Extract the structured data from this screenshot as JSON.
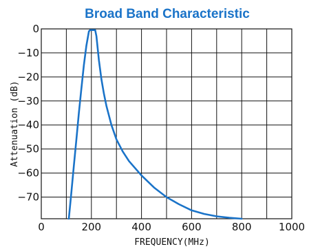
{
  "chart_data": {
    "type": "line",
    "title": "Broad Band Characteristic",
    "xlabel": "FREQUENCY(MHz)",
    "ylabel": "Attenuation (dB)",
    "xlim": [
      0,
      1000
    ],
    "ylim": [
      -79,
      0
    ],
    "x_ticks": [
      "0",
      "200",
      "400",
      "600",
      "800",
      "1000"
    ],
    "y_ticks": [
      "0",
      "−10",
      "−20",
      "−30",
      "−40",
      "−50",
      "−60",
      "−70"
    ],
    "grid": true,
    "x_grid_step": 100,
    "y_grid_step": 10,
    "series": [
      {
        "color": "#1a73c8",
        "points": [
          [
            110,
            -79
          ],
          [
            120,
            -68
          ],
          [
            130,
            -57
          ],
          [
            140,
            -46
          ],
          [
            150,
            -35
          ],
          [
            160,
            -25
          ],
          [
            170,
            -15
          ],
          [
            180,
            -7
          ],
          [
            190,
            -1
          ],
          [
            195,
            -0.5
          ],
          [
            215,
            -0.5
          ],
          [
            220,
            -3
          ],
          [
            230,
            -13
          ],
          [
            240,
            -21
          ],
          [
            250,
            -27
          ],
          [
            260,
            -32
          ],
          [
            280,
            -40
          ],
          [
            300,
            -46
          ],
          [
            325,
            -51
          ],
          [
            350,
            -55
          ],
          [
            400,
            -61
          ],
          [
            450,
            -66
          ],
          [
            500,
            -70
          ],
          [
            550,
            -73
          ],
          [
            600,
            -75.5
          ],
          [
            650,
            -77
          ],
          [
            700,
            -78
          ],
          [
            750,
            -78.6
          ],
          [
            800,
            -79
          ]
        ]
      }
    ],
    "title_color": "#1a73c8"
  }
}
